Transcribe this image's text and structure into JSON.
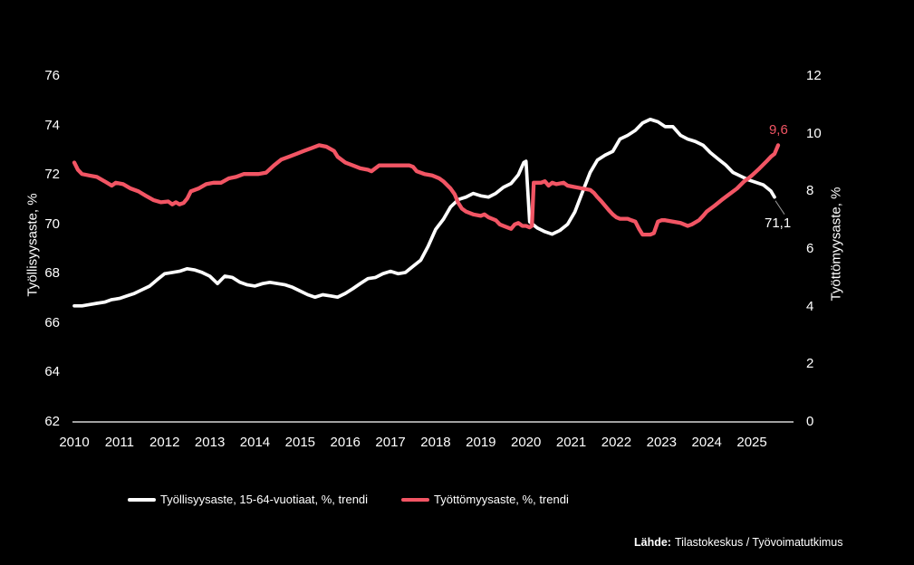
{
  "chart_data": {
    "type": "line",
    "title": "",
    "x_axis": {
      "ticks": [
        2010,
        2011,
        2012,
        2013,
        2014,
        2015,
        2016,
        2017,
        2018,
        2019,
        2020,
        2021,
        2022,
        2023,
        2024,
        2025
      ],
      "range": [
        2010,
        2025.9
      ],
      "grid": false
    },
    "left_axis": {
      "label": "Työllisyysaste, %",
      "ticks": [
        76,
        74,
        72,
        70,
        68,
        66,
        64,
        62
      ],
      "range": [
        62,
        76
      ]
    },
    "right_axis": {
      "label": "Työttömyysaste, %",
      "ticks": [
        12,
        10,
        8,
        6,
        4,
        2,
        0
      ],
      "range": [
        0,
        12
      ]
    },
    "legend_position": "bottom",
    "series": [
      {
        "name": "Työllisyysaste, 15-64-vuotiaat, %, trendi",
        "axis": "left",
        "color": "#ffffff",
        "end_label": "71,1",
        "end_value": 71.1,
        "points": [
          [
            2010.0,
            66.7
          ],
          [
            2010.17,
            66.7
          ],
          [
            2010.33,
            66.75
          ],
          [
            2010.5,
            66.8
          ],
          [
            2010.67,
            66.85
          ],
          [
            2010.83,
            66.95
          ],
          [
            2011.0,
            67.0
          ],
          [
            2011.17,
            67.1
          ],
          [
            2011.33,
            67.2
          ],
          [
            2011.5,
            67.35
          ],
          [
            2011.67,
            67.5
          ],
          [
            2011.83,
            67.75
          ],
          [
            2012.0,
            68.0
          ],
          [
            2012.17,
            68.05
          ],
          [
            2012.33,
            68.1
          ],
          [
            2012.5,
            68.2
          ],
          [
            2012.67,
            68.15
          ],
          [
            2012.83,
            68.05
          ],
          [
            2013.0,
            67.9
          ],
          [
            2013.17,
            67.6
          ],
          [
            2013.33,
            67.9
          ],
          [
            2013.5,
            67.85
          ],
          [
            2013.67,
            67.65
          ],
          [
            2013.83,
            67.55
          ],
          [
            2014.0,
            67.5
          ],
          [
            2014.17,
            67.6
          ],
          [
            2014.33,
            67.65
          ],
          [
            2014.5,
            67.6
          ],
          [
            2014.67,
            67.55
          ],
          [
            2014.83,
            67.45
          ],
          [
            2015.0,
            67.3
          ],
          [
            2015.17,
            67.15
          ],
          [
            2015.33,
            67.05
          ],
          [
            2015.5,
            67.15
          ],
          [
            2015.67,
            67.1
          ],
          [
            2015.83,
            67.05
          ],
          [
            2016.0,
            67.2
          ],
          [
            2016.17,
            67.4
          ],
          [
            2016.33,
            67.6
          ],
          [
            2016.5,
            67.8
          ],
          [
            2016.67,
            67.85
          ],
          [
            2016.83,
            68.0
          ],
          [
            2017.0,
            68.1
          ],
          [
            2017.17,
            68.0
          ],
          [
            2017.33,
            68.05
          ],
          [
            2017.5,
            68.3
          ],
          [
            2017.67,
            68.55
          ],
          [
            2017.83,
            69.1
          ],
          [
            2018.0,
            69.8
          ],
          [
            2018.17,
            70.2
          ],
          [
            2018.33,
            70.7
          ],
          [
            2018.5,
            71.0
          ],
          [
            2018.67,
            71.1
          ],
          [
            2018.83,
            71.25
          ],
          [
            2019.0,
            71.15
          ],
          [
            2019.17,
            71.1
          ],
          [
            2019.33,
            71.25
          ],
          [
            2019.5,
            71.5
          ],
          [
            2019.67,
            71.65
          ],
          [
            2019.83,
            72.0
          ],
          [
            2019.95,
            72.5
          ],
          [
            2020.0,
            72.55
          ],
          [
            2020.08,
            70.1
          ],
          [
            2020.25,
            69.85
          ],
          [
            2020.42,
            69.7
          ],
          [
            2020.58,
            69.6
          ],
          [
            2020.75,
            69.75
          ],
          [
            2020.92,
            70.0
          ],
          [
            2021.08,
            70.5
          ],
          [
            2021.25,
            71.3
          ],
          [
            2021.42,
            72.1
          ],
          [
            2021.58,
            72.6
          ],
          [
            2021.75,
            72.8
          ],
          [
            2021.92,
            72.95
          ],
          [
            2022.08,
            73.45
          ],
          [
            2022.25,
            73.6
          ],
          [
            2022.42,
            73.8
          ],
          [
            2022.58,
            74.1
          ],
          [
            2022.75,
            74.25
          ],
          [
            2022.92,
            74.15
          ],
          [
            2023.08,
            73.95
          ],
          [
            2023.25,
            73.95
          ],
          [
            2023.42,
            73.6
          ],
          [
            2023.58,
            73.45
          ],
          [
            2023.75,
            73.35
          ],
          [
            2023.92,
            73.2
          ],
          [
            2024.08,
            72.9
          ],
          [
            2024.25,
            72.65
          ],
          [
            2024.42,
            72.4
          ],
          [
            2024.58,
            72.1
          ],
          [
            2024.75,
            71.95
          ],
          [
            2024.92,
            71.8
          ],
          [
            2025.08,
            71.7
          ],
          [
            2025.25,
            71.6
          ],
          [
            2025.42,
            71.35
          ],
          [
            2025.5,
            71.1
          ]
        ]
      },
      {
        "name": "Työttömyysaste, %, trendi",
        "axis": "right",
        "color": "#f25564",
        "end_label": "9,6",
        "end_value": 9.6,
        "points": [
          [
            2010.0,
            9.0
          ],
          [
            2010.08,
            8.75
          ],
          [
            2010.17,
            8.6
          ],
          [
            2010.33,
            8.55
          ],
          [
            2010.5,
            8.5
          ],
          [
            2010.67,
            8.35
          ],
          [
            2010.83,
            8.2
          ],
          [
            2010.92,
            8.3
          ],
          [
            2011.08,
            8.25
          ],
          [
            2011.25,
            8.1
          ],
          [
            2011.42,
            8.0
          ],
          [
            2011.58,
            7.85
          ],
          [
            2011.75,
            7.7
          ],
          [
            2011.92,
            7.62
          ],
          [
            2012.08,
            7.65
          ],
          [
            2012.17,
            7.55
          ],
          [
            2012.25,
            7.62
          ],
          [
            2012.33,
            7.55
          ],
          [
            2012.42,
            7.6
          ],
          [
            2012.5,
            7.75
          ],
          [
            2012.58,
            8.0
          ],
          [
            2012.75,
            8.1
          ],
          [
            2012.92,
            8.25
          ],
          [
            2013.08,
            8.3
          ],
          [
            2013.25,
            8.3
          ],
          [
            2013.42,
            8.45
          ],
          [
            2013.58,
            8.5
          ],
          [
            2013.75,
            8.6
          ],
          [
            2013.92,
            8.6
          ],
          [
            2014.08,
            8.6
          ],
          [
            2014.25,
            8.65
          ],
          [
            2014.42,
            8.9
          ],
          [
            2014.58,
            9.1
          ],
          [
            2014.75,
            9.2
          ],
          [
            2014.92,
            9.3
          ],
          [
            2015.08,
            9.4
          ],
          [
            2015.25,
            9.5
          ],
          [
            2015.42,
            9.6
          ],
          [
            2015.58,
            9.55
          ],
          [
            2015.75,
            9.4
          ],
          [
            2015.83,
            9.2
          ],
          [
            2016.0,
            9.0
          ],
          [
            2016.17,
            8.9
          ],
          [
            2016.33,
            8.8
          ],
          [
            2016.5,
            8.75
          ],
          [
            2016.58,
            8.7
          ],
          [
            2016.75,
            8.9
          ],
          [
            2016.92,
            8.9
          ],
          [
            2017.08,
            8.9
          ],
          [
            2017.25,
            8.9
          ],
          [
            2017.42,
            8.9
          ],
          [
            2017.5,
            8.85
          ],
          [
            2017.58,
            8.7
          ],
          [
            2017.75,
            8.6
          ],
          [
            2017.92,
            8.55
          ],
          [
            2018.0,
            8.5
          ],
          [
            2018.08,
            8.45
          ],
          [
            2018.17,
            8.35
          ],
          [
            2018.33,
            8.1
          ],
          [
            2018.42,
            7.9
          ],
          [
            2018.5,
            7.6
          ],
          [
            2018.58,
            7.4
          ],
          [
            2018.67,
            7.3
          ],
          [
            2018.83,
            7.2
          ],
          [
            2019.0,
            7.15
          ],
          [
            2019.08,
            7.2
          ],
          [
            2019.17,
            7.1
          ],
          [
            2019.33,
            7.0
          ],
          [
            2019.42,
            6.85
          ],
          [
            2019.5,
            6.8
          ],
          [
            2019.67,
            6.7
          ],
          [
            2019.75,
            6.85
          ],
          [
            2019.83,
            6.9
          ],
          [
            2019.92,
            6.8
          ],
          [
            2020.0,
            6.8
          ],
          [
            2020.08,
            6.75
          ],
          [
            2020.13,
            6.8
          ],
          [
            2020.17,
            8.3
          ],
          [
            2020.33,
            8.3
          ],
          [
            2020.42,
            8.35
          ],
          [
            2020.5,
            8.2
          ],
          [
            2020.58,
            8.3
          ],
          [
            2020.67,
            8.25
          ],
          [
            2020.83,
            8.3
          ],
          [
            2020.92,
            8.2
          ],
          [
            2021.08,
            8.15
          ],
          [
            2021.25,
            8.1
          ],
          [
            2021.42,
            8.05
          ],
          [
            2021.5,
            7.95
          ],
          [
            2021.58,
            7.8
          ],
          [
            2021.67,
            7.65
          ],
          [
            2021.75,
            7.5
          ],
          [
            2021.83,
            7.35
          ],
          [
            2021.92,
            7.2
          ],
          [
            2022.0,
            7.1
          ],
          [
            2022.08,
            7.05
          ],
          [
            2022.25,
            7.05
          ],
          [
            2022.33,
            7.0
          ],
          [
            2022.42,
            6.95
          ],
          [
            2022.5,
            6.7
          ],
          [
            2022.58,
            6.5
          ],
          [
            2022.75,
            6.5
          ],
          [
            2022.83,
            6.55
          ],
          [
            2022.92,
            6.95
          ],
          [
            2023.0,
            7.0
          ],
          [
            2023.08,
            7.0
          ],
          [
            2023.25,
            6.95
          ],
          [
            2023.42,
            6.9
          ],
          [
            2023.58,
            6.8
          ],
          [
            2023.67,
            6.85
          ],
          [
            2023.83,
            7.0
          ],
          [
            2023.92,
            7.15
          ],
          [
            2024.0,
            7.3
          ],
          [
            2024.17,
            7.5
          ],
          [
            2024.33,
            7.7
          ],
          [
            2024.5,
            7.9
          ],
          [
            2024.67,
            8.1
          ],
          [
            2024.83,
            8.35
          ],
          [
            2024.92,
            8.45
          ],
          [
            2025.0,
            8.55
          ],
          [
            2025.17,
            8.8
          ],
          [
            2025.33,
            9.05
          ],
          [
            2025.42,
            9.2
          ],
          [
            2025.5,
            9.3
          ],
          [
            2025.58,
            9.6
          ]
        ]
      }
    ]
  },
  "colors": {
    "background": "#000000",
    "text": "#ffffff",
    "axis_line": "#ffffff",
    "leader_line": "#999999"
  },
  "source": {
    "prefix": "Lähde:",
    "text": "Tilastokeskus / Työvoimatutkimus"
  }
}
